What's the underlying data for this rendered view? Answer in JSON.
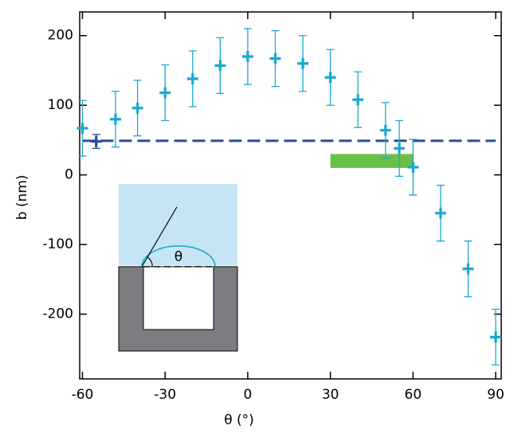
{
  "chart_data": {
    "type": "scatter",
    "xlabel": "θ (°)",
    "ylabel": "b (nm)",
    "xlim": [
      -61,
      92
    ],
    "ylim": [
      -293,
      234
    ],
    "xticks": [
      -60,
      -30,
      0,
      30,
      60,
      90
    ],
    "yticks": [
      -200,
      -100,
      0,
      100,
      200
    ],
    "series": [
      {
        "color": "#19a9cf",
        "x": [
          -60,
          -48,
          -40,
          -30,
          -20,
          -10,
          0,
          10,
          20,
          30,
          40,
          50,
          55,
          60,
          70,
          80,
          90
        ],
        "values": [
          67,
          80,
          96,
          118,
          138,
          157,
          170,
          167,
          160,
          140,
          108,
          64,
          38,
          11,
          -55,
          -135,
          -233
        ],
        "errors": [
          40,
          40,
          40,
          40,
          40,
          40,
          40,
          40,
          40,
          40,
          40,
          40,
          40,
          40,
          40,
          40,
          40
        ]
      },
      {
        "color": "#2b4c9b",
        "x": [
          -55
        ],
        "values": [
          48
        ],
        "errors": [
          10
        ]
      }
    ],
    "reference_line": {
      "y": 49,
      "x": [
        -60,
        90
      ],
      "color": "#2b4c9b"
    },
    "band": {
      "x": [
        30,
        60
      ],
      "y": [
        10,
        30
      ],
      "color": "#6abf45"
    },
    "inset_label": "θ"
  }
}
